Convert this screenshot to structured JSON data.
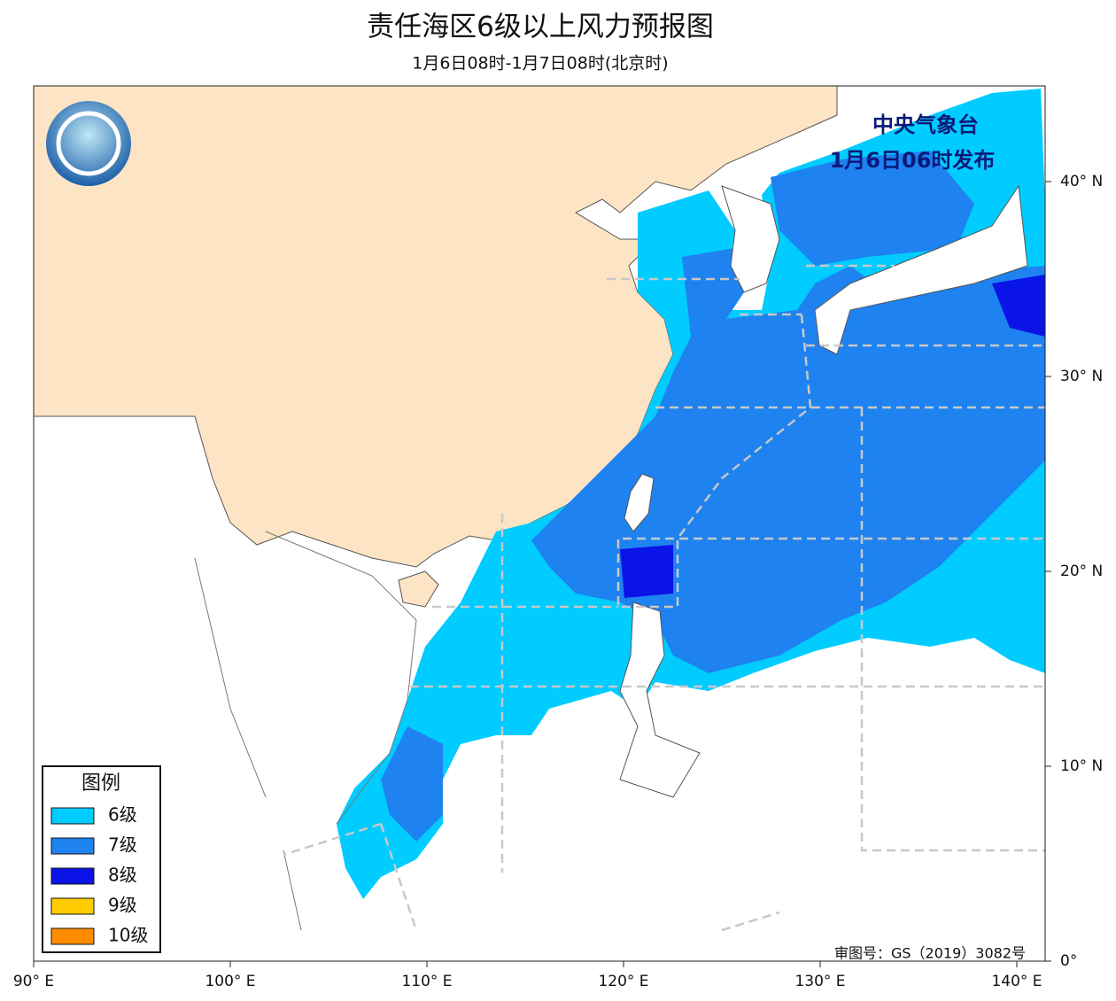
{
  "header": {
    "title": "责任海区6级以上风力预报图",
    "subtitle": "1月6日08时-1月7日08时(北京时)"
  },
  "issuer": {
    "agency": "中央气象台",
    "issued": "1月6日06时发布"
  },
  "legend": {
    "title": "图例",
    "items": [
      {
        "label": "6级",
        "color": "#00ccff"
      },
      {
        "label": "7级",
        "color": "#1e82f0"
      },
      {
        "label": "8级",
        "color": "#0a14e6"
      },
      {
        "label": "9级",
        "color": "#ffcc00"
      },
      {
        "label": "10级",
        "color": "#ff8c00"
      }
    ]
  },
  "axes": {
    "longitude_labels": [
      "90° E",
      "100° E",
      "110° E",
      "120° E",
      "130° E",
      "140° E"
    ],
    "latitude_labels": [
      "0°",
      "10° N",
      "20° N",
      "30° N",
      "40° N"
    ]
  },
  "approval": "审图号：GS（2019）3082号"
}
